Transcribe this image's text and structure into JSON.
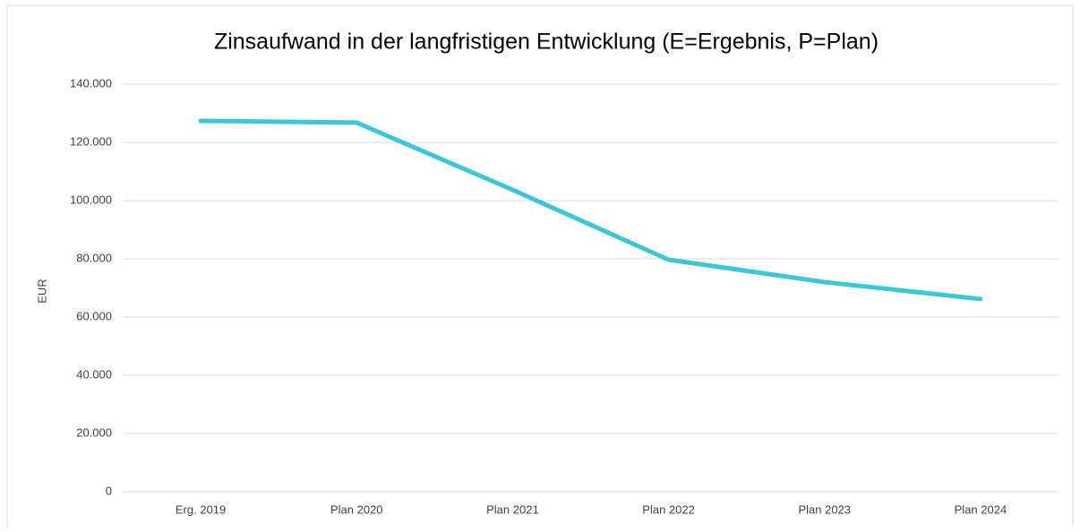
{
  "chart_data": {
    "type": "line",
    "title": "Zinsaufwand in der langfristigen Entwicklung (E=Ergebnis, P=Plan)",
    "y_label": "EUR",
    "categories": [
      "Erg. 2019",
      "Plan 2020",
      "Plan 2021",
      "Plan 2022",
      "Plan 2023",
      "Plan 2024"
    ],
    "series": [
      {
        "name": "Zinsaufwand",
        "color": "#3ac7d7",
        "values": [
          127400,
          126800,
          103700,
          79700,
          72000,
          66200
        ]
      }
    ],
    "ylim": [
      0,
      140000
    ],
    "yticks": [
      0,
      {
        "value": 20000,
        "label": "20.000"
      },
      {
        "value": 40000,
        "label": "40.000"
      },
      {
        "value": 60000,
        "label": "60.000"
      },
      {
        "value": 80000,
        "label": "80.000"
      },
      {
        "value": 100000,
        "label": "100.000"
      },
      {
        "value": 120000,
        "label": "120.000"
      },
      {
        "value": 140000,
        "label": "140.000"
      }
    ],
    "grid": true
  }
}
